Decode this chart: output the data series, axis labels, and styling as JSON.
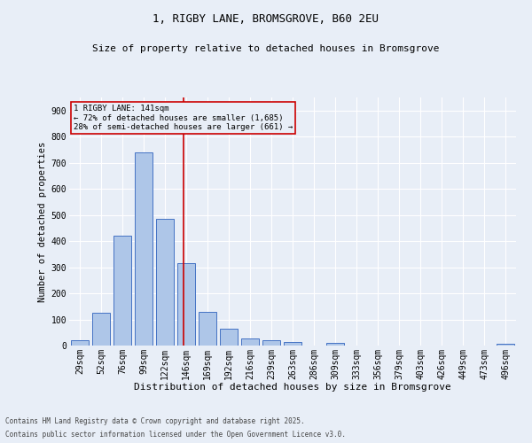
{
  "title1": "1, RIGBY LANE, BROMSGROVE, B60 2EU",
  "title2": "Size of property relative to detached houses in Bromsgrove",
  "xlabel": "Distribution of detached houses by size in Bromsgrove",
  "ylabel": "Number of detached properties",
  "bar_labels": [
    "29sqm",
    "52sqm",
    "76sqm",
    "99sqm",
    "122sqm",
    "146sqm",
    "169sqm",
    "192sqm",
    "216sqm",
    "239sqm",
    "263sqm",
    "286sqm",
    "309sqm",
    "333sqm",
    "356sqm",
    "379sqm",
    "403sqm",
    "426sqm",
    "449sqm",
    "473sqm",
    "496sqm"
  ],
  "bar_values": [
    20,
    125,
    420,
    740,
    485,
    315,
    130,
    65,
    28,
    22,
    14,
    0,
    10,
    0,
    0,
    0,
    0,
    0,
    0,
    0,
    7
  ],
  "bar_color": "#aec6e8",
  "bar_edge_color": "#4472c4",
  "bg_color": "#e8eef7",
  "grid_color": "#ffffff",
  "vline_color": "#cc0000",
  "annotation_text": "1 RIGBY LANE: 141sqm\n← 72% of detached houses are smaller (1,685)\n28% of semi-detached houses are larger (661) →",
  "annotation_box_color": "#cc0000",
  "footnote1": "Contains HM Land Registry data © Crown copyright and database right 2025.",
  "footnote2": "Contains public sector information licensed under the Open Government Licence v3.0.",
  "ylim": [
    0,
    950
  ],
  "yticks": [
    0,
    100,
    200,
    300,
    400,
    500,
    600,
    700,
    800,
    900
  ],
  "title1_fontsize": 9,
  "title2_fontsize": 8,
  "ylabel_fontsize": 7.5,
  "xlabel_fontsize": 8,
  "tick_fontsize": 7,
  "annot_fontsize": 6.5,
  "footnote_fontsize": 5.5
}
